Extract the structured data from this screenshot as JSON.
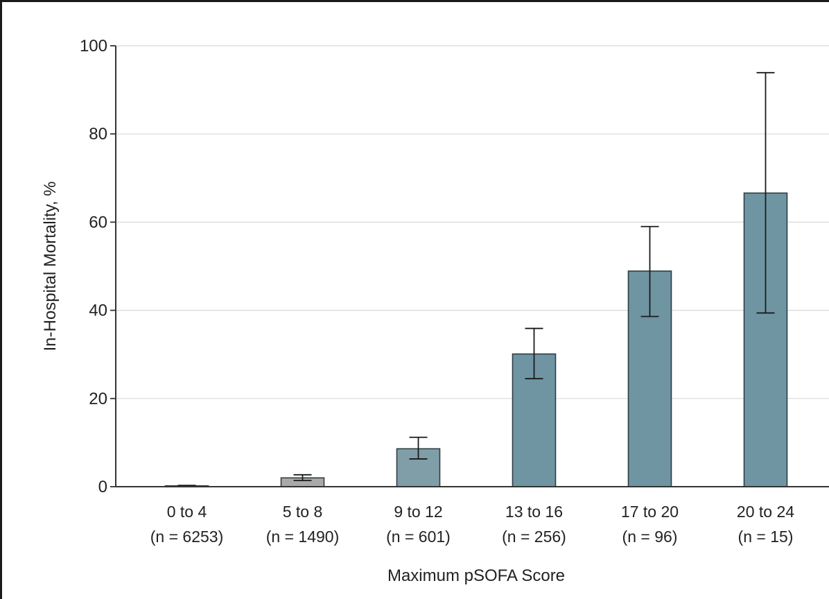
{
  "chart_data": {
    "type": "bar",
    "categories": [
      "0 to 4",
      "5 to 8",
      "9 to 12",
      "13 to 16",
      "17 to 20",
      "20 to 24"
    ],
    "sample_sizes": [
      "(n = 6253)",
      "(n = 1490)",
      "(n = 601)",
      "(n = 256)",
      "(n = 96)",
      "(n = 15)"
    ],
    "values": [
      0.2,
      2.0,
      8.6,
      30.1,
      48.9,
      66.6
    ],
    "error_low": [
      0.1,
      1.4,
      6.3,
      24.5,
      38.6,
      39.4
    ],
    "error_high": [
      0.3,
      2.7,
      11.2,
      35.9,
      59.0,
      93.9
    ],
    "xlabel": "Maximum pSOFA Score",
    "ylabel": "In-Hospital Mortality, %",
    "ylim": [
      0,
      100
    ],
    "yticks": [
      0,
      20,
      40,
      60,
      80,
      100
    ],
    "grid": true,
    "colors": {
      "bar_low": "#a9a9a9",
      "bar_mid": "#7f9ea8",
      "bar_high": "#6f95a3",
      "bar_stroke": "#2e3d42",
      "grid": "#d9d9d9",
      "axis": "#333333"
    }
  }
}
